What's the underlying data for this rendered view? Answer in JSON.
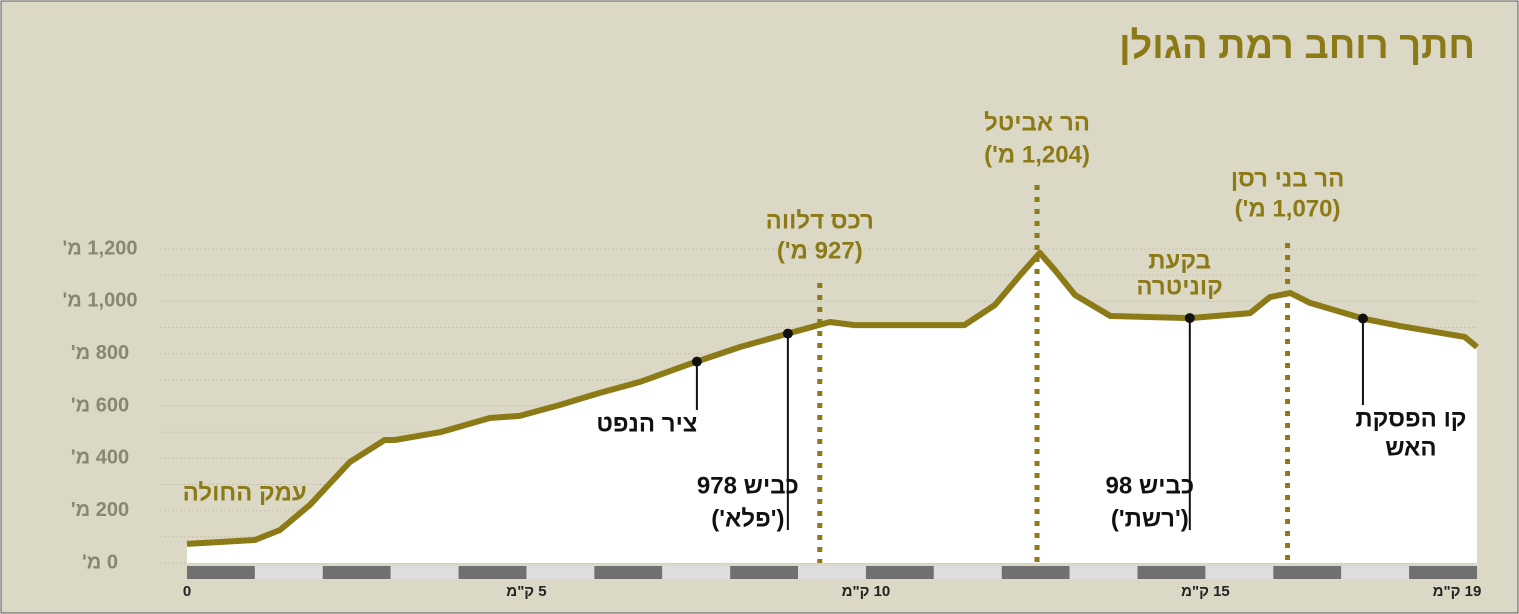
{
  "chart_data": {
    "type": "area",
    "title": "חתך רוחב רמת הגולן",
    "color": "#8c7a17",
    "x": [
      0,
      1.0,
      1.37,
      1.81,
      2.4,
      2.91,
      3.06,
      3.73,
      4.46,
      4.9,
      5.49,
      6.08,
      6.67,
      7.4,
      8.14,
      8.88,
      9.47,
      9.83,
      11.45,
      11.9,
      12.27,
      12.56,
      12.78,
      13.08,
      13.6,
      14.77,
      15.66,
      15.95,
      16.25,
      16.54,
      17.35,
      17.86,
      18.82,
      19
    ],
    "values": [
      73,
      88,
      126,
      222,
      386,
      470,
      470,
      500,
      554,
      562,
      604,
      650,
      692,
      760,
      825,
      879,
      921,
      909,
      909,
      986,
      1100,
      1185,
      1120,
      1024,
      944,
      936,
      955,
      1016,
      1032,
      994,
      932,
      906,
      864,
      825
    ],
    "xlim": [
      0,
      19
    ],
    "xticks": [
      0,
      {
        "value": 5,
        "label": "5 ק\"מ"
      },
      {
        "value": 10,
        "label": "10 ק\"מ"
      },
      {
        "value": 15,
        "label": "15 ק\"מ"
      },
      {
        "value": 19,
        "label": "19 ק\"מ"
      }
    ],
    "ylim": [
      0,
      1200
    ],
    "yticks": [
      {
        "value": 0,
        "label": "0 מ'"
      },
      {
        "value": 200,
        "label": "200 מ'"
      },
      {
        "value": 400,
        "label": "400 מ'"
      },
      {
        "value": 600,
        "label": "600 מ'"
      },
      {
        "value": 800,
        "label": "800 מ'"
      },
      {
        "value": 1000,
        "label": "1,000 מ'"
      },
      {
        "value": 1200,
        "label": "1,200 מ'"
      }
    ],
    "minor_yticks": [
      100,
      300,
      500,
      700,
      900,
      1100
    ],
    "grid": true,
    "peaks": [
      {
        "lines": [
          "רכס דלווה",
          "(927 מ')"
        ],
        "x": 9.32
      },
      {
        "lines": [
          "הר אביטל",
          "(1,204 מ')"
        ],
        "x": 12.52
      },
      {
        "lines": [
          "הר בני רסן",
          "(1,070 מ')"
        ],
        "x": 16.21
      }
    ],
    "area_labels": [
      {
        "lines": [
          "עמק החולה"
        ],
        "x": 0.85
      },
      {
        "lines": [
          "בקעת",
          "קוניטרה"
        ],
        "x": 14.62
      }
    ],
    "pointers": [
      {
        "lines": [
          "ציר הנפט"
        ],
        "x": 7.51
      },
      {
        "lines": [
          "כביש 978",
          "('פלא')"
        ],
        "x": 8.85
      },
      {
        "lines": [
          "כביש 98",
          "('רשת')"
        ],
        "x": 14.77
      },
      {
        "lines": [
          "קו הפסקת",
          "האש"
        ],
        "x": 17.32
      }
    ]
  }
}
